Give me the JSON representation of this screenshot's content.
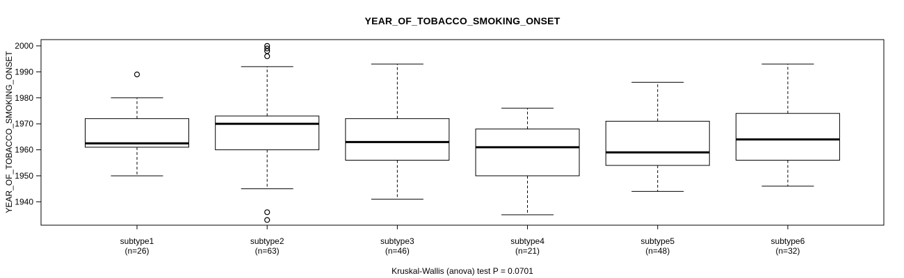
{
  "page": {
    "title": "YEAR_OF_TOBACCO_SMOKING_ONSET",
    "y_axis_title": "YEAR_OF_TOBACCO_SMOKING_ONSET",
    "caption": "Kruskal-Wallis (anova) test P = 0.0701"
  },
  "chart_data": {
    "type": "boxplot",
    "title": "YEAR_OF_TOBACCO_SMOKING_ONSET",
    "xlabel": "",
    "ylabel": "YEAR_OF_TOBACCO_SMOKING_ONSET",
    "caption": "Kruskal-Wallis (anova) test P = 0.0701",
    "grid": false,
    "orientation": "vertical",
    "ylim": [
      1931,
      2002.4
    ],
    "yticks": [
      1940,
      1950,
      1960,
      1970,
      1980,
      1990,
      2000
    ],
    "categories": [
      "subtype1",
      "subtype2",
      "subtype3",
      "subtype4",
      "subtype5",
      "subtype6"
    ],
    "category_sublabels": [
      "(n=26)",
      "(n=63)",
      "(n=46)",
      "(n=21)",
      "(n=48)",
      "(n=32)"
    ],
    "sample_sizes": [
      26,
      63,
      46,
      21,
      48,
      32
    ],
    "series": [
      {
        "name": "subtype1",
        "n": 26,
        "whisker_low": 1950,
        "q1": 1961,
        "median": 1962.5,
        "q3": 1972,
        "whisker_high": 1980,
        "outliers": [
          1989
        ]
      },
      {
        "name": "subtype2",
        "n": 63,
        "whisker_low": 1945,
        "q1": 1960,
        "median": 1970,
        "q3": 1973,
        "whisker_high": 1992,
        "outliers": [
          2000,
          1999,
          1998,
          1996,
          1936,
          1933
        ]
      },
      {
        "name": "subtype3",
        "n": 46,
        "whisker_low": 1941,
        "q1": 1956,
        "median": 1963,
        "q3": 1972,
        "whisker_high": 1993,
        "outliers": []
      },
      {
        "name": "subtype4",
        "n": 21,
        "whisker_low": 1935,
        "q1": 1950,
        "median": 1961,
        "q3": 1968,
        "whisker_high": 1976,
        "outliers": []
      },
      {
        "name": "subtype5",
        "n": 48,
        "whisker_low": 1944,
        "q1": 1954,
        "median": 1959,
        "q3": 1971,
        "whisker_high": 1986,
        "outliers": []
      },
      {
        "name": "subtype6",
        "n": 32,
        "whisker_low": 1946,
        "q1": 1956,
        "median": 1964,
        "q3": 1974,
        "whisker_high": 1993,
        "outliers": []
      }
    ],
    "style": {
      "box_fill": "#ffffff",
      "line_color": "#000000",
      "background": "#ffffff"
    }
  }
}
